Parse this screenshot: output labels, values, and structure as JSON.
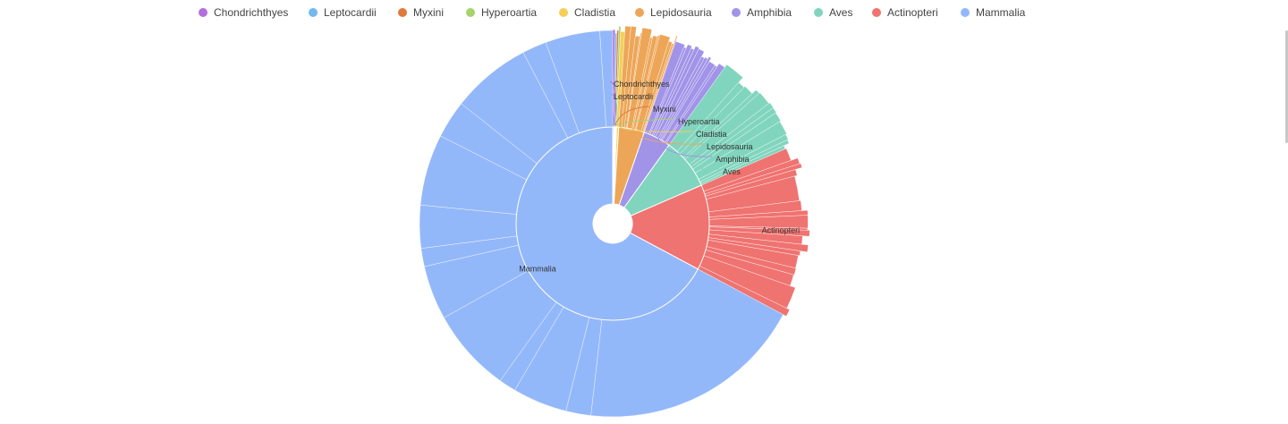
{
  "chart_data": {
    "type": "sunburst",
    "legend_position": "top-center",
    "classes": [
      {
        "name": "Chondrichthyes",
        "color": "#b46fdc",
        "value": 0.2
      },
      {
        "name": "Leptocardii",
        "color": "#73b8ef",
        "value": 0.15
      },
      {
        "name": "Myxini",
        "color": "#e07a3c",
        "value": 0.15
      },
      {
        "name": "Hyperoartia",
        "color": "#a8d36a",
        "value": 0.15
      },
      {
        "name": "Cladistia",
        "color": "#f5cf56",
        "value": 0.35
      },
      {
        "name": "Lepidosauria",
        "color": "#eda657",
        "value": 4.3
      },
      {
        "name": "Amphibia",
        "color": "#a194e8",
        "value": 4.6
      },
      {
        "name": "Aves",
        "color": "#81d5be",
        "value": 8.6
      },
      {
        "name": "Actinopteri",
        "color": "#ef7370",
        "value": 14.3
      },
      {
        "name": "Mammalia",
        "color": "#93b8fa",
        "value": 67.2
      }
    ]
  }
}
